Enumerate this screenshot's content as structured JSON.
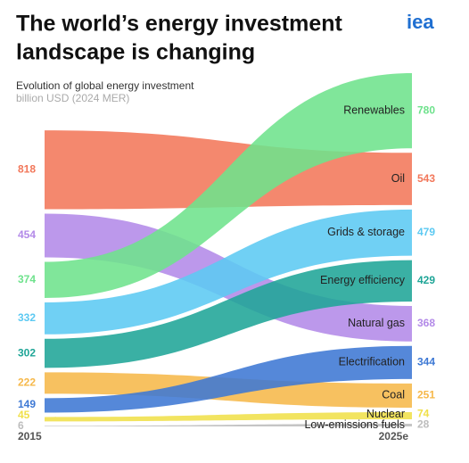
{
  "chart_data": {
    "type": "ribbon",
    "title": [
      "The world’s energy investment",
      "landscape is changing"
    ],
    "subtitle": "Evolution of global energy investment",
    "unit": "billion USD (2024 MER)",
    "logo": "iea",
    "x": [
      "2015",
      "2025e"
    ],
    "series": [
      {
        "name": "Renewables",
        "color": "#6ee28c",
        "values": [
          374,
          780
        ]
      },
      {
        "name": "Oil",
        "color": "#f2775a",
        "values": [
          818,
          543
        ]
      },
      {
        "name": "Grids & storage",
        "color": "#5cc9f2",
        "values": [
          332,
          479
        ]
      },
      {
        "name": "Energy efficiency",
        "color": "#1fa597",
        "values": [
          302,
          429
        ]
      },
      {
        "name": "Natural gas",
        "color": "#b38ae8",
        "values": [
          454,
          368
        ]
      },
      {
        "name": "Electrification",
        "color": "#3d78d4",
        "values": [
          149,
          344
        ]
      },
      {
        "name": "Coal",
        "color": "#f6b84a",
        "values": [
          222,
          251
        ]
      },
      {
        "name": "Nuclear",
        "color": "#f0e04a",
        "values": [
          45,
          74
        ]
      },
      {
        "name": "Low-emissions fuels",
        "color": "#bdbdbd",
        "values": [
          6,
          28
        ]
      }
    ]
  }
}
